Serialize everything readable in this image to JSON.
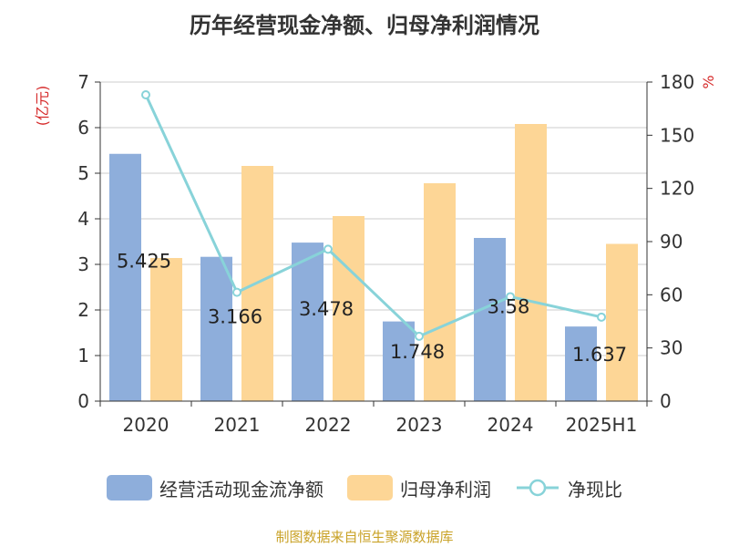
{
  "chart_data": {
    "type": "bar",
    "title": "历年经营现金净额、归母净利润情况",
    "categories": [
      "2020",
      "2021",
      "2022",
      "2023",
      "2024",
      "2025H1"
    ],
    "y_left_label": "(亿元)",
    "y_right_label": "%",
    "y_left_ticks": [
      "0",
      "1",
      "2",
      "3",
      "4",
      "5",
      "6",
      "7"
    ],
    "y_right_ticks": [
      "0",
      "30",
      "60",
      "90",
      "120",
      "150",
      "180"
    ],
    "ylim_left": [
      0,
      7
    ],
    "ylim_right": [
      0,
      180
    ],
    "grid": true,
    "legend_position": "bottom",
    "series": [
      {
        "name": "经营活动现金流净额",
        "type": "bar",
        "axis": "left",
        "color": "#8eaedb",
        "values": [
          5.425,
          3.166,
          3.478,
          1.748,
          3.58,
          1.637
        ],
        "labels": [
          "5.425",
          "3.166",
          "3.478",
          "1.748",
          "3.58",
          "1.637"
        ]
      },
      {
        "name": "归母净利润",
        "type": "bar",
        "axis": "left",
        "color": "#fdd696",
        "values": [
          3.14,
          5.16,
          4.06,
          4.78,
          6.08,
          3.45
        ]
      },
      {
        "name": "净现比",
        "type": "line",
        "axis": "right",
        "color": "#88d3d9",
        "values": [
          172.8,
          61.4,
          85.7,
          36.6,
          58.9,
          47.4
        ]
      }
    ]
  },
  "source_text": "制图数据来自恒生聚源数据库"
}
